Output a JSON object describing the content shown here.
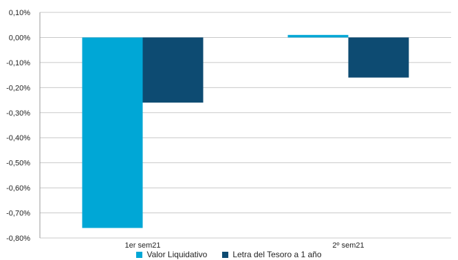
{
  "chart_data": {
    "type": "bar",
    "categories": [
      "1er sem21",
      "2º sem21"
    ],
    "series": [
      {
        "name": "Valor Liquidativo",
        "values": [
          -0.76,
          0.01
        ],
        "color": "#00a7d6"
      },
      {
        "name": "Letra del Tesoro a 1 año",
        "values": [
          -0.26,
          -0.16
        ],
        "color": "#0d4b72"
      }
    ],
    "ylim": [
      -0.8,
      0.1
    ],
    "yticks": [
      {
        "value": 0.1,
        "label": "0,10%"
      },
      {
        "value": 0.0,
        "label": "0,00%"
      },
      {
        "value": -0.1,
        "label": "-0,10%"
      },
      {
        "value": -0.2,
        "label": "-0,20%"
      },
      {
        "value": -0.3,
        "label": "-0,30%"
      },
      {
        "value": -0.4,
        "label": "-0,40%"
      },
      {
        "value": -0.5,
        "label": "-0,50%"
      },
      {
        "value": -0.6,
        "label": "-0,60%"
      },
      {
        "value": -0.7,
        "label": "-0,70%"
      },
      {
        "value": -0.8,
        "label": "-0,80%"
      }
    ],
    "grid": true,
    "legend_position": "bottom"
  }
}
